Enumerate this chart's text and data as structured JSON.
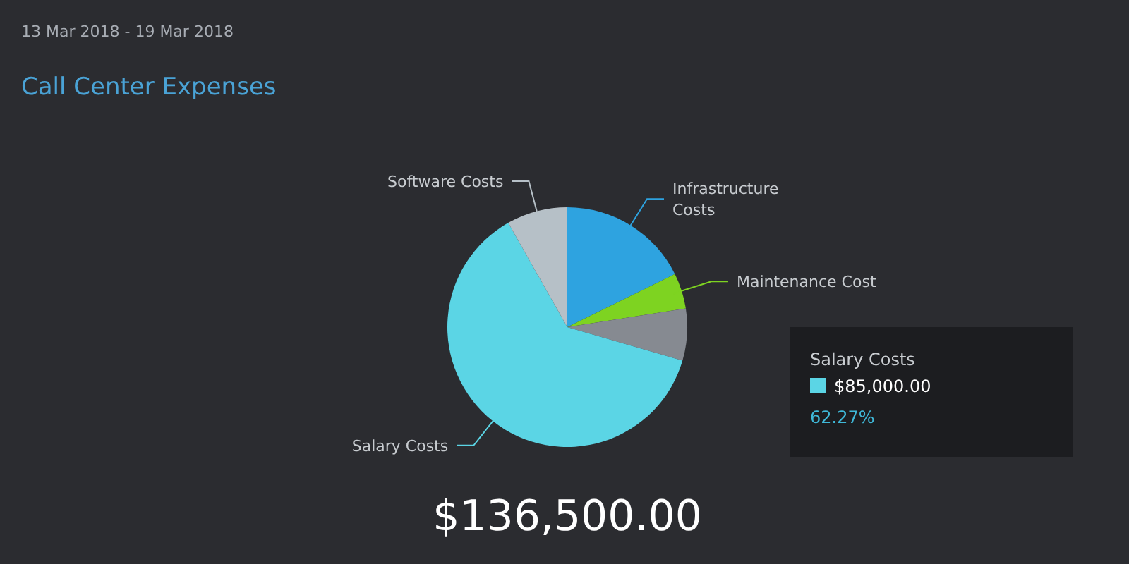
{
  "chart_data": {
    "type": "pie",
    "title": "Call Center Expenses",
    "subtitle": "13 Mar 2018 - 19 Mar 2018",
    "categories": [
      "Infrastructure Costs",
      "Maintenance Cost",
      null,
      "Salary Costs",
      "Software Costs"
    ],
    "values": [
      17.7,
      4.8,
      7.0,
      62.27,
      8.2
    ],
    "colors": [
      "#2ea3e0",
      "#7ed321",
      "#868a91",
      "#5bd5e5",
      "#b6c0c7"
    ],
    "annotations": [
      "$136,500.00",
      "Salary Costs",
      "$85,000.00",
      "62.27%"
    ]
  }
}
